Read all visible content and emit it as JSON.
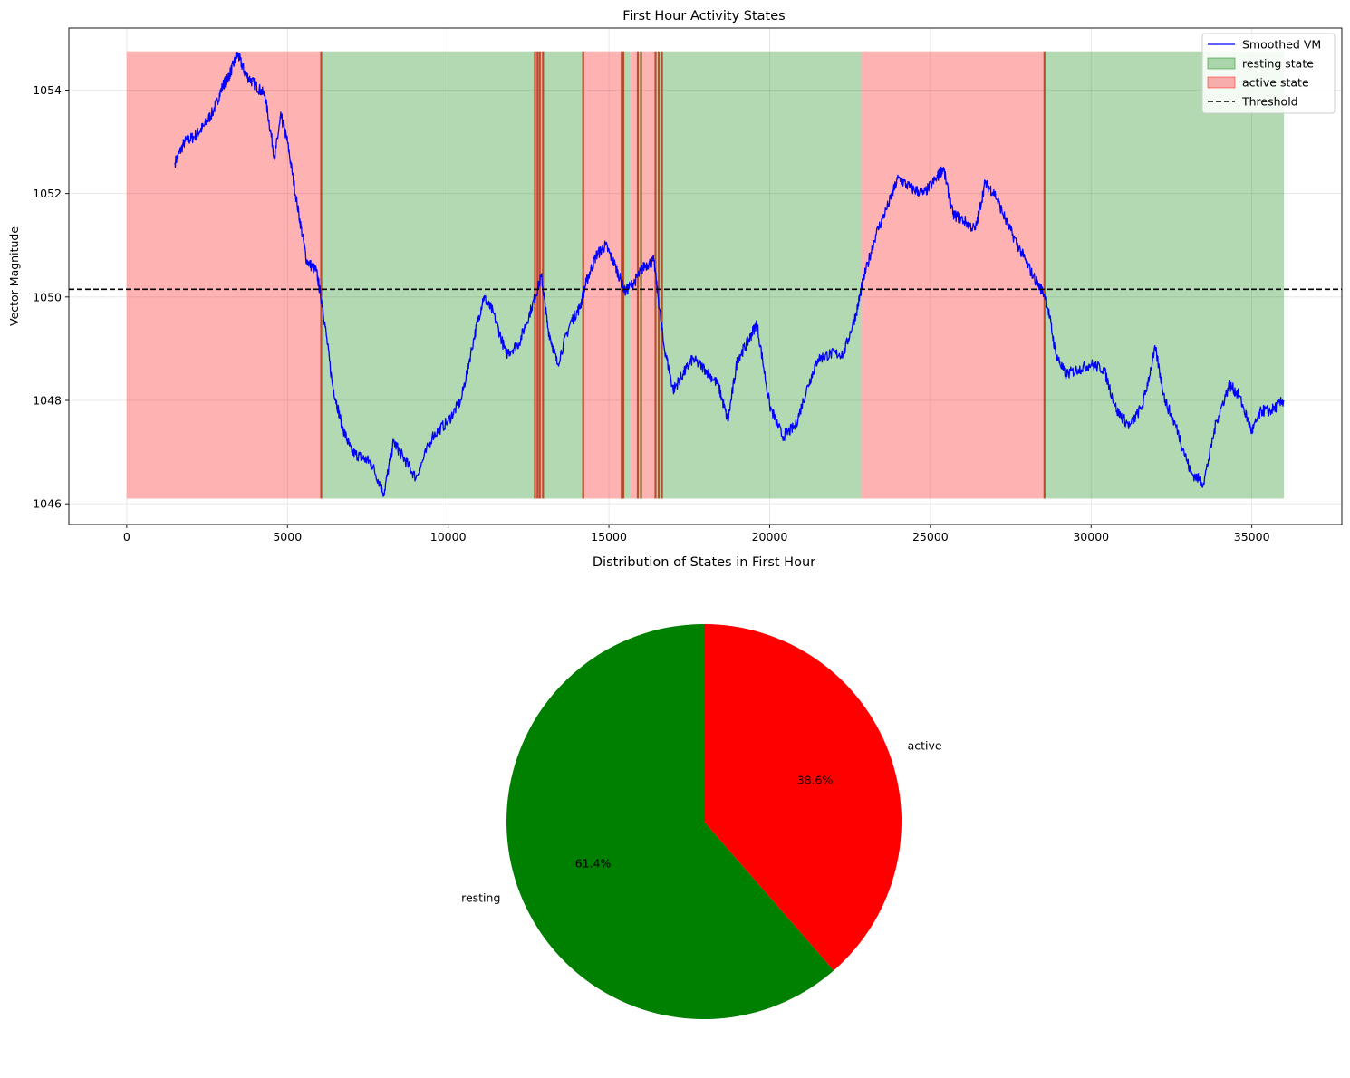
{
  "chart_data": [
    {
      "type": "line",
      "title": "First Hour Activity States",
      "xlabel": "",
      "ylabel": "Vector Magnitude",
      "xlim": [
        -1800,
        37800
      ],
      "ylim": [
        1045.6,
        1055.2
      ],
      "xticks": [
        0,
        5000,
        10000,
        15000,
        20000,
        25000,
        30000,
        35000
      ],
      "yticks": [
        1046,
        1048,
        1050,
        1052,
        1054
      ],
      "grid": true,
      "legend_position": "top-right",
      "legend": [
        {
          "label": "Smoothed VM",
          "kind": "line",
          "color": "#0000ff"
        },
        {
          "label": "resting state",
          "kind": "patch",
          "color": "#008000"
        },
        {
          "label": "active state",
          "kind": "patch",
          "color": "#ff0000"
        },
        {
          "label": "Threshold",
          "kind": "dashed",
          "color": "#000000"
        }
      ],
      "threshold": 1050.15,
      "band_range": [
        1046.1,
        1054.75
      ],
      "state_spans": [
        {
          "state": "active",
          "start": 0,
          "end": 6050
        },
        {
          "state": "resting",
          "start": 6050,
          "end": 12700
        },
        {
          "state": "active",
          "start": 12700,
          "end": 12950
        },
        {
          "state": "resting",
          "start": 12950,
          "end": 14200
        },
        {
          "state": "active",
          "start": 14200,
          "end": 15450
        },
        {
          "state": "resting",
          "start": 15450,
          "end": 15650
        },
        {
          "state": "active",
          "start": 15650,
          "end": 15900
        },
        {
          "state": "resting",
          "start": 15900,
          "end": 16050
        },
        {
          "state": "active",
          "start": 16050,
          "end": 16450
        },
        {
          "state": "resting",
          "start": 16450,
          "end": 16650
        },
        {
          "state": "resting",
          "start": 16650,
          "end": 22850
        },
        {
          "state": "active",
          "start": 22850,
          "end": 28550
        },
        {
          "state": "resting",
          "start": 28550,
          "end": 36000
        }
      ],
      "boundary_lines": [
        6050,
        12700,
        12780,
        12850,
        12950,
        14200,
        15400,
        15450,
        15900,
        16000,
        16450,
        16550,
        16650,
        28550
      ],
      "series": [
        {
          "name": "Smoothed VM",
          "color": "#0000ff",
          "x": [
            1500,
            1800,
            2100,
            2400,
            2700,
            3000,
            3200,
            3450,
            3700,
            4000,
            4300,
            4600,
            4800,
            5000,
            5300,
            5600,
            5900,
            6100,
            6400,
            6700,
            7000,
            7300,
            7600,
            8000,
            8300,
            8600,
            9000,
            9500,
            10000,
            10400,
            10800,
            11100,
            11400,
            11800,
            12200,
            12600,
            12900,
            13100,
            13400,
            13800,
            14100,
            14300,
            14600,
            14900,
            15200,
            15500,
            15800,
            16100,
            16400,
            16700,
            17000,
            17300,
            17600,
            18000,
            18400,
            18700,
            19000,
            19300,
            19600,
            20000,
            20400,
            20800,
            21200,
            21500,
            21900,
            22300,
            22700,
            22900,
            23300,
            23700,
            24000,
            24400,
            24800,
            25200,
            25400,
            25700,
            26000,
            26400,
            26700,
            27000,
            27400,
            27800,
            28200,
            28600,
            28900,
            29200,
            29600,
            30000,
            30400,
            30800,
            31200,
            31600,
            32000,
            32300,
            32700,
            33100,
            33500,
            33900,
            34300,
            34600,
            35000,
            35300,
            35600,
            36000
          ],
          "values": [
            1052.6,
            1053.0,
            1053.1,
            1053.3,
            1053.6,
            1054.1,
            1054.3,
            1054.7,
            1054.3,
            1054.1,
            1053.9,
            1052.7,
            1053.5,
            1053.0,
            1051.8,
            1050.7,
            1050.5,
            1049.8,
            1048.3,
            1047.5,
            1047.0,
            1046.9,
            1046.8,
            1046.2,
            1047.2,
            1046.9,
            1046.5,
            1047.3,
            1047.6,
            1048.0,
            1049.2,
            1050.0,
            1049.7,
            1048.9,
            1049.1,
            1049.8,
            1050.4,
            1049.4,
            1048.7,
            1049.5,
            1049.8,
            1050.3,
            1050.8,
            1051.0,
            1050.6,
            1050.1,
            1050.3,
            1050.6,
            1050.7,
            1049.1,
            1048.2,
            1048.5,
            1048.8,
            1048.6,
            1048.3,
            1047.6,
            1048.8,
            1049.1,
            1049.5,
            1047.9,
            1047.3,
            1047.5,
            1048.3,
            1048.8,
            1048.9,
            1048.9,
            1049.7,
            1050.3,
            1051.2,
            1051.8,
            1052.3,
            1052.1,
            1052.0,
            1052.3,
            1052.5,
            1051.6,
            1051.5,
            1051.3,
            1052.2,
            1052.0,
            1051.4,
            1050.9,
            1050.4,
            1050.0,
            1048.9,
            1048.5,
            1048.6,
            1048.7,
            1048.6,
            1047.8,
            1047.5,
            1047.9,
            1049.0,
            1048.0,
            1047.4,
            1046.6,
            1046.4,
            1047.6,
            1048.3,
            1048.1,
            1047.4,
            1047.8,
            1047.8,
            1048.0
          ]
        }
      ]
    },
    {
      "type": "pie",
      "title": "Distribution of States in First Hour",
      "categories": [
        "resting",
        "active"
      ],
      "values": [
        61.4,
        38.6
      ],
      "autopct": [
        "61.4%",
        "38.6%"
      ],
      "colors": [
        "#008000",
        "#ff0000"
      ],
      "start_angle_deg": 90
    }
  ]
}
